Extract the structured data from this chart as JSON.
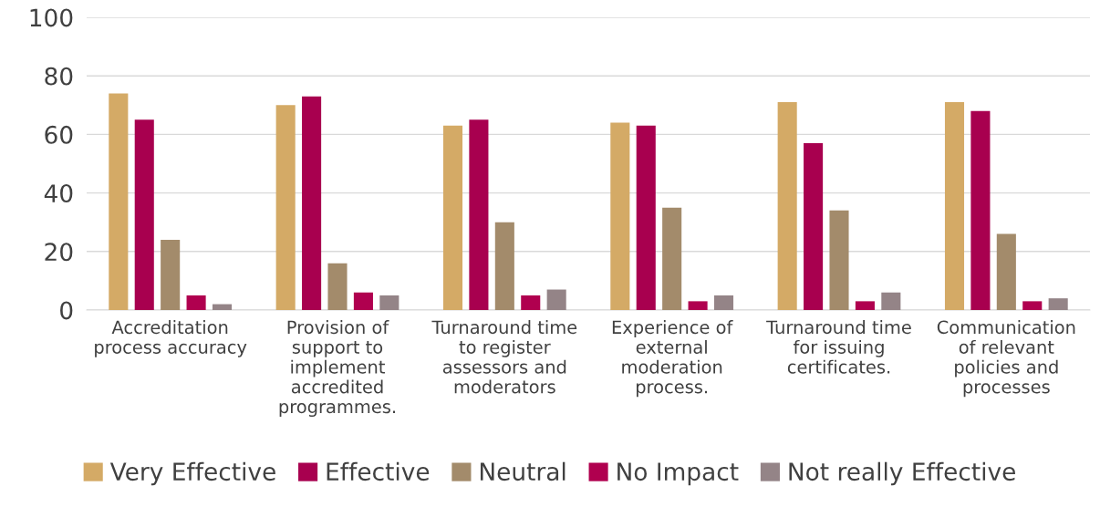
{
  "chart_data": {
    "type": "bar",
    "categories": [
      "Accreditation\nprocess accuracy",
      "Provision of\nsupport to\nimplement\naccredited\nprogrammes.",
      "Turnaround time\nto register\nassessors and\nmoderators",
      "Experience of\nexternal\nmoderation\nprocess.",
      "Turnaround time\nfor issuing\ncertificates.",
      "Communication\nof relevant\npolicies and\nprocesses"
    ],
    "series": [
      {
        "name": "Very Effective",
        "color": "#d4aa66",
        "values": [
          74,
          70,
          63,
          64,
          71,
          71
        ]
      },
      {
        "name": "Effective",
        "color": "#a8004f",
        "values": [
          65,
          73,
          65,
          63,
          57,
          68
        ]
      },
      {
        "name": "Neutral",
        "color": "#a38b6b",
        "values": [
          24,
          16,
          30,
          35,
          34,
          26
        ]
      },
      {
        "name": "No Impact",
        "color": "#b0004f",
        "values": [
          5,
          6,
          5,
          3,
          3,
          3
        ]
      },
      {
        "name": "Not really Effective",
        "color": "#948487",
        "values": [
          2,
          5,
          7,
          5,
          6,
          4
        ]
      }
    ],
    "ylim": [
      0,
      100
    ],
    "yticks": [
      0,
      20,
      40,
      60,
      80,
      100
    ],
    "grid": "y",
    "legend": "bottom"
  }
}
